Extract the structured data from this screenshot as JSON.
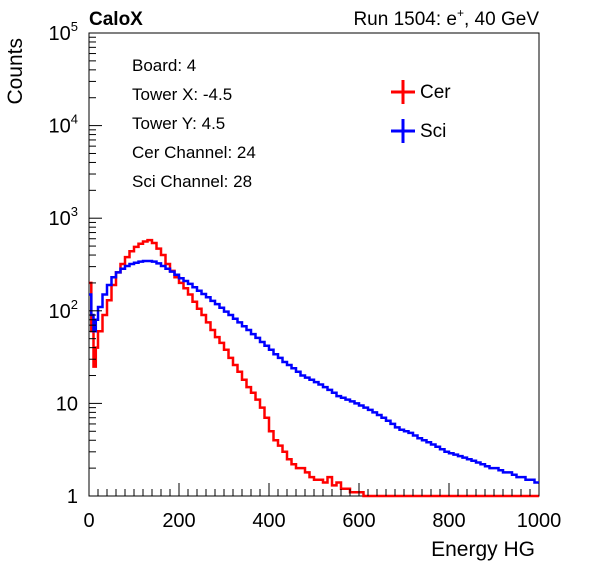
{
  "header": {
    "brand": "CaloX",
    "run_prefix": "Run 1504: e",
    "run_sup": "+",
    "run_suffix": ", 40 GeV"
  },
  "info_box": {
    "lines": [
      "Board: 4",
      "Tower X: -4.5",
      "Tower Y: 4.5",
      "Cer Channel: 24",
      "Sci Channel: 28"
    ]
  },
  "chart_data": {
    "type": "line",
    "style": "step-histogram",
    "xlabel": "Energy HG",
    "ylabel": "Counts",
    "xlim": [
      0,
      1000
    ],
    "ylim": [
      1,
      100000
    ],
    "yscale": "log",
    "x_ticks": [
      0,
      200,
      400,
      600,
      800,
      1000
    ],
    "y_ticks": [
      {
        "value": 1,
        "base": "1",
        "exp": ""
      },
      {
        "value": 10,
        "base": "10",
        "exp": ""
      },
      {
        "value": 100,
        "base": "10",
        "exp": "2"
      },
      {
        "value": 1000,
        "base": "10",
        "exp": "3"
      },
      {
        "value": 10000,
        "base": "10",
        "exp": "4"
      },
      {
        "value": 100000,
        "base": "10",
        "exp": "5"
      }
    ],
    "legend_position": "top-right",
    "series": [
      {
        "name": "Cer",
        "color": "#ff0000",
        "points": [
          [
            0,
            200
          ],
          [
            5,
            60
          ],
          [
            10,
            25
          ],
          [
            15,
            40
          ],
          [
            20,
            60
          ],
          [
            30,
            90
          ],
          [
            40,
            130
          ],
          [
            50,
            190
          ],
          [
            60,
            260
          ],
          [
            70,
            320
          ],
          [
            80,
            380
          ],
          [
            90,
            440
          ],
          [
            100,
            490
          ],
          [
            110,
            530
          ],
          [
            120,
            560
          ],
          [
            130,
            580
          ],
          [
            140,
            540
          ],
          [
            150,
            470
          ],
          [
            160,
            400
          ],
          [
            170,
            320
          ],
          [
            180,
            270
          ],
          [
            190,
            230
          ],
          [
            200,
            200
          ],
          [
            210,
            175
          ],
          [
            220,
            150
          ],
          [
            230,
            125
          ],
          [
            240,
            105
          ],
          [
            250,
            90
          ],
          [
            260,
            75
          ],
          [
            270,
            62
          ],
          [
            280,
            52
          ],
          [
            290,
            45
          ],
          [
            300,
            38
          ],
          [
            310,
            31
          ],
          [
            320,
            26
          ],
          [
            330,
            22
          ],
          [
            340,
            18
          ],
          [
            350,
            15
          ],
          [
            360,
            13
          ],
          [
            370,
            11
          ],
          [
            380,
            9
          ],
          [
            390,
            7
          ],
          [
            400,
            5
          ],
          [
            410,
            4
          ],
          [
            420,
            3.5
          ],
          [
            430,
            3
          ],
          [
            440,
            2.5
          ],
          [
            450,
            2.2
          ],
          [
            460,
            2
          ],
          [
            470,
            2
          ],
          [
            480,
            1.8
          ],
          [
            490,
            1.6
          ],
          [
            500,
            1.5
          ],
          [
            510,
            1.5
          ],
          [
            520,
            1.4
          ],
          [
            530,
            1.6
          ],
          [
            540,
            1.3
          ],
          [
            550,
            1.4
          ],
          [
            560,
            1.2
          ],
          [
            570,
            1.2
          ],
          [
            580,
            1.1
          ],
          [
            590,
            1.1
          ],
          [
            600,
            1.1
          ],
          [
            610,
            1
          ],
          [
            640,
            1
          ],
          [
            700,
            1
          ],
          [
            720,
            1
          ],
          [
            800,
            1
          ],
          [
            1000,
            1
          ]
        ]
      },
      {
        "name": "Sci",
        "color": "#0000ff",
        "points": [
          [
            0,
            150
          ],
          [
            5,
            90
          ],
          [
            10,
            60
          ],
          [
            15,
            80
          ],
          [
            20,
            110
          ],
          [
            30,
            150
          ],
          [
            40,
            190
          ],
          [
            50,
            230
          ],
          [
            60,
            260
          ],
          [
            70,
            285
          ],
          [
            80,
            305
          ],
          [
            90,
            320
          ],
          [
            100,
            330
          ],
          [
            110,
            340
          ],
          [
            120,
            345
          ],
          [
            130,
            345
          ],
          [
            140,
            340
          ],
          [
            150,
            325
          ],
          [
            160,
            305
          ],
          [
            170,
            285
          ],
          [
            180,
            265
          ],
          [
            190,
            245
          ],
          [
            200,
            225
          ],
          [
            210,
            210
          ],
          [
            220,
            195
          ],
          [
            230,
            180
          ],
          [
            240,
            165
          ],
          [
            250,
            152
          ],
          [
            260,
            140
          ],
          [
            270,
            128
          ],
          [
            280,
            118
          ],
          [
            290,
            108
          ],
          [
            300,
            98
          ],
          [
            310,
            90
          ],
          [
            320,
            82
          ],
          [
            330,
            75
          ],
          [
            340,
            68
          ],
          [
            350,
            62
          ],
          [
            360,
            56
          ],
          [
            370,
            51
          ],
          [
            380,
            46
          ],
          [
            390,
            42
          ],
          [
            400,
            38
          ],
          [
            410,
            34
          ],
          [
            420,
            31
          ],
          [
            430,
            28
          ],
          [
            440,
            26
          ],
          [
            450,
            24
          ],
          [
            460,
            22
          ],
          [
            470,
            20
          ],
          [
            480,
            19
          ],
          [
            490,
            18
          ],
          [
            500,
            17
          ],
          [
            510,
            16
          ],
          [
            520,
            15
          ],
          [
            530,
            14
          ],
          [
            540,
            13
          ],
          [
            550,
            12
          ],
          [
            560,
            11.5
          ],
          [
            570,
            11
          ],
          [
            580,
            10.5
          ],
          [
            590,
            10
          ],
          [
            600,
            9.5
          ],
          [
            610,
            9
          ],
          [
            620,
            8.5
          ],
          [
            630,
            8
          ],
          [
            640,
            7.5
          ],
          [
            650,
            7
          ],
          [
            660,
            6.5
          ],
          [
            670,
            6
          ],
          [
            680,
            5.5
          ],
          [
            690,
            5.2
          ],
          [
            700,
            5
          ],
          [
            710,
            4.8
          ],
          [
            720,
            4.5
          ],
          [
            730,
            4.2
          ],
          [
            740,
            4
          ],
          [
            750,
            3.8
          ],
          [
            760,
            3.6
          ],
          [
            770,
            3.4
          ],
          [
            780,
            3.2
          ],
          [
            790,
            3
          ],
          [
            800,
            2.9
          ],
          [
            810,
            2.8
          ],
          [
            820,
            2.7
          ],
          [
            830,
            2.6
          ],
          [
            840,
            2.5
          ],
          [
            850,
            2.4
          ],
          [
            860,
            2.3
          ],
          [
            870,
            2.2
          ],
          [
            880,
            2.1
          ],
          [
            890,
            2
          ],
          [
            900,
            2
          ],
          [
            910,
            1.9
          ],
          [
            920,
            1.8
          ],
          [
            930,
            1.8
          ],
          [
            940,
            1.7
          ],
          [
            950,
            1.6
          ],
          [
            960,
            1.6
          ],
          [
            970,
            1.5
          ],
          [
            980,
            1.5
          ],
          [
            990,
            1.4
          ]
        ]
      }
    ]
  }
}
